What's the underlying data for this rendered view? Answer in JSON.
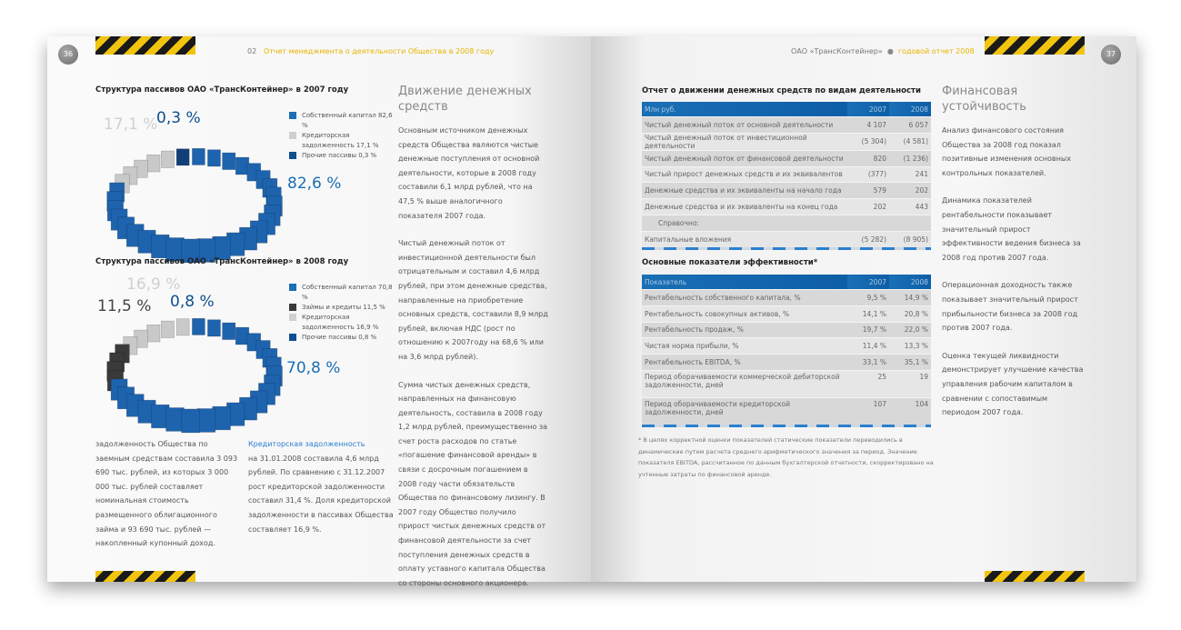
{
  "left": {
    "page_number": "36",
    "section_num": "02",
    "section_title": "Отчет менеджмента о деятельности Общества в 2008 году",
    "chart2007": {
      "title": "Структура пассивов ОАО «ТрансКонтейнер» в 2007 году",
      "labels": [
        {
          "text": "17,1 %",
          "color": "#d0d0d0"
        },
        {
          "text": "0,3 %",
          "color": "#0e4f8f"
        },
        {
          "text": "82,6 %",
          "color": "#1a6fb5"
        }
      ],
      "legend": [
        "Собственный капитал 82,6 %",
        "Кредиторская задолженность 17,1 %",
        "Прочие пассивы 0,3 %"
      ],
      "segments": [
        {
          "value": 82.6,
          "color": "#1e63ad"
        },
        {
          "value": 17.1,
          "color": "#c9c9c9"
        },
        {
          "value": 0.3,
          "color": "#123f78"
        }
      ]
    },
    "chart2008": {
      "title": "Структура пассивов ОАО «ТрансКонтейнер» в 2008 году",
      "labels": [
        {
          "text": "16,9 %",
          "color": "#d0d0d0"
        },
        {
          "text": "11,5 %",
          "color": "#444"
        },
        {
          "text": "0,8 %",
          "color": "#0e4f8f"
        },
        {
          "text": "70,8 %",
          "color": "#1a6fb5"
        }
      ],
      "legend": [
        "Собственный капитал 70,8 %",
        "Займы и кредиты 11,5 %",
        "Кредиторская задолженность 16,9 %",
        "Прочие пассивы 0,8 %"
      ],
      "segments": [
        {
          "value": 70.8,
          "color": "#1e63ad"
        },
        {
          "value": 11.5,
          "color": "#3a3a3a"
        },
        {
          "value": 16.9,
          "color": "#c9c9c9"
        },
        {
          "value": 0.8,
          "color": "#123f78"
        }
      ]
    },
    "col1_text": "задолженность Общества по заемным средствам составила 3 093 690 тыс. рублей, из которых 3 000 000 тыс. рублей составляет номинальная стоимость размещенного облигационного займа и 93 690 тыс. рублей — накопленный купонный доход.",
    "col2_heading": "Кредиторская задолженность",
    "col2_text": "на 31.01.2008 составила 4,6 млрд рублей. По сравнению с 31.12.2007 рост кредиторской задолженности составил 31,4 %. Доля кредиторской задолженности в пассивах Общества составляет 16,9 %.",
    "article": {
      "heading": "Движение денежных средств",
      "paragraphs": [
        "Основным источником денежных средств Общества являются чистые денежные поступления от основной деятельности, которые в 2008 году составили 6,1 млрд рублей, что на 47,5 % выше аналогичного показателя 2007 года.",
        "Чистый денежный поток от инвестиционной деятельности был отрицательным и составил 4,6 млрд рублей, при этом денежные средства, направленные на приобретение основных средств, составили 8,9 млрд рублей, включая НДС (рост по отношению к 2007году на 68,6 % или на 3,6 млрд рублей).",
        "Сумма чистых денежных средств, направленных на финансовую деятельность, составила в 2008 году 1,2 млрд рублей, преимущественно за счет роста расходов по статье «погашение финансовой аренды» в связи с досрочным погашением в 2008 году части обязательств Общества по финансовому лизингу. В 2007 году Общество получило прирост чистых денежных средств от финансовой деятельности за счет поступления денежных средств в оплату уставного капитала Общества со стороны основного акционера."
      ]
    }
  },
  "right": {
    "page_number": "37",
    "company": "ОАО «ТрансКонтейнер»",
    "report": "годовой отчет 2008",
    "table1": {
      "title": "Отчет о движении денежных средств по видам деятельности",
      "head": [
        "Млн руб.",
        "2007",
        "2008"
      ],
      "rows": [
        [
          "Чистый денежный поток от основной деятельности",
          "4 107",
          "6 057"
        ],
        [
          "Чистый денежный поток от инвестиционной деятельности",
          "(5 304)",
          "(4 581)"
        ],
        [
          "Чистый денежный поток от финансовой деятельности",
          "820",
          "(1 236)"
        ],
        [
          "Чистый прирост денежных средств и их эквивалентов",
          "(377)",
          "241"
        ],
        [
          "Денежные средства и их эквиваленты на начало года",
          "579",
          "202"
        ],
        [
          "Денежные средства и их эквиваленты на конец года",
          "202",
          "443"
        ],
        [
          "Справочно:",
          "",
          ""
        ],
        [
          "Капитальные вложения",
          "(5 282)",
          "(8 905)"
        ]
      ]
    },
    "table2": {
      "title": "Основные показатели эффективности*",
      "head": [
        "Показатель",
        "2007",
        "2008"
      ],
      "rows": [
        [
          "Рентабельность собственного капитала, %",
          "9,5 %",
          "14,9 %"
        ],
        [
          "Рентабельность совокупных активов, %",
          "14,1 %",
          "20,8 %"
        ],
        [
          "Рентабельность продаж, %",
          "19,7 %",
          "22,0 %"
        ],
        [
          "Чистая норма прибыли, %",
          "11,4 %",
          "13,3 %"
        ],
        [
          "Рентабельность EBITDA, %",
          "33,1 %",
          "35,1 %"
        ],
        [
          "Период оборачиваемости коммерческой дебиторской задолженности, дней",
          "25",
          "19"
        ],
        [
          "Период оборачиваемости кредиторской задолженности, дней",
          "107",
          "104"
        ]
      ]
    },
    "footnote": "* В целях корректной оценки показателей статические показатели переводились в динамические путем расчета среднего арифметического значения за период. Значение показателя EBITDA, рассчитанное по данным бухгалтерской отчетности, скорректировано на учтенные затраты по финансовой аренде.",
    "article": {
      "heading": "Финансовая устойчивость",
      "paragraphs": [
        "Анализ финансового состояния Общества за 2008 год показал позитивные изменения основных контрольных показателей.",
        "Динамика показателей рентабельности показывает значительный прирост эффективности ведения бизнеса за 2008 год против 2007 года.",
        "Операционная доходность также показывает значительный прирост прибыльности бизнеса за 2008 год против 2007 года.",
        "Оценка текущей ликвидности демонстрирует улучшение качества управления рабочим капиталом в сравнении с сопоставимым периодом 2007 года."
      ]
    }
  }
}
